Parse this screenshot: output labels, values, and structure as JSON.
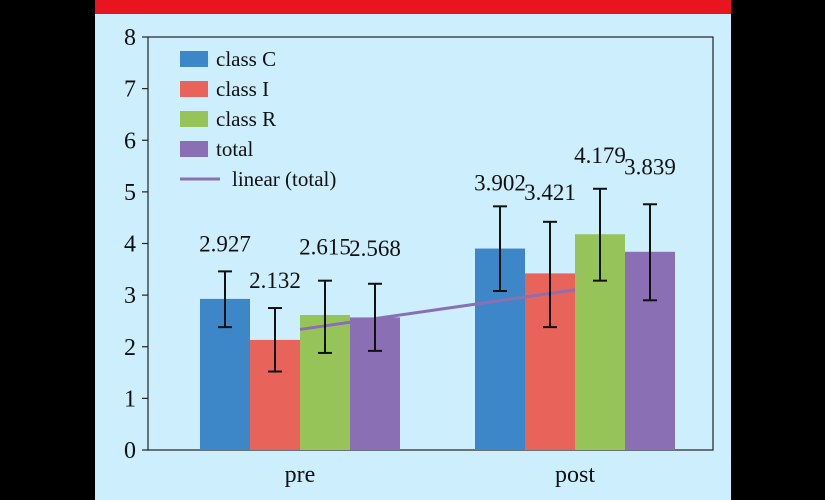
{
  "chart_data": {
    "type": "bar",
    "categories": [
      "pre",
      "post"
    ],
    "ylim": [
      0,
      8
    ],
    "yticks": [
      0,
      1,
      2,
      3,
      4,
      5,
      6,
      7,
      8
    ],
    "grid": false,
    "legend_position": "top-left",
    "series": [
      {
        "name": "class C",
        "color": "#3d87c8",
        "values": [
          2.927,
          3.902
        ],
        "error_low": [
          2.38,
          3.08
        ],
        "error_high": [
          3.46,
          4.72
        ],
        "labels": [
          "2.927",
          "3.902"
        ]
      },
      {
        "name": "class I",
        "color": "#e8645a",
        "values": [
          2.132,
          3.421
        ],
        "error_low": [
          1.52,
          2.38
        ],
        "error_high": [
          2.75,
          4.42
        ],
        "labels": [
          "2.132",
          "3.421"
        ]
      },
      {
        "name": "class R",
        "color": "#97c459",
        "values": [
          2.615,
          4.179
        ],
        "error_low": [
          1.88,
          3.28
        ],
        "error_high": [
          3.28,
          5.06
        ],
        "labels": [
          "2.615",
          "4.179"
        ]
      },
      {
        "name": "total",
        "color": "#8a6fb4",
        "values": [
          2.568,
          3.839
        ],
        "error_low": [
          1.92,
          2.9
        ],
        "error_high": [
          3.22,
          4.76
        ],
        "labels": [
          "2.568",
          "3.839"
        ]
      }
    ],
    "trendline": {
      "name": "linear (total)",
      "color": "#8a6fb4",
      "from_y": 2.568,
      "to_y": 3.839
    }
  }
}
